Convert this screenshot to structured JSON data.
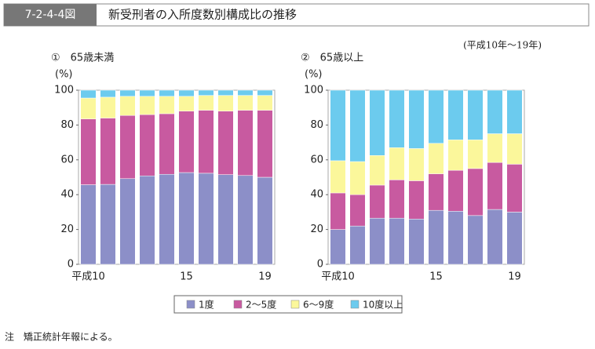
{
  "figure_id": "7-2-4-4図",
  "title": "新受刑者の入所度数別構成比の推移",
  "period": "(平成10年～19年)",
  "note": "注　矯正統計年報による。",
  "chart_data": [
    {
      "type": "stacked_bar",
      "subtitle": "①　65歳未満",
      "y_label": "(%)",
      "categories": [
        "平成10",
        null,
        null,
        null,
        null,
        "15",
        null,
        null,
        null,
        "19"
      ],
      "ylim": [
        0,
        100
      ],
      "yticks": [
        0,
        20,
        40,
        60,
        80,
        100
      ],
      "series": [
        {
          "name": "1度",
          "color": "#8c8fc8",
          "values": [
            45.7,
            45.9,
            49.2,
            50.8,
            51.7,
            52.7,
            52.3,
            51.5,
            51.0,
            50.0
          ]
        },
        {
          "name": "2～5度",
          "color": "#c85aa0",
          "values": [
            37.8,
            38.1,
            36.3,
            35.2,
            34.8,
            35.3,
            36.2,
            36.5,
            37.5,
            38.5
          ]
        },
        {
          "name": "6～9度",
          "color": "#fbf79b",
          "values": [
            12.0,
            12.0,
            11.0,
            10.5,
            10.0,
            8.5,
            8.5,
            9.0,
            8.5,
            8.5
          ]
        },
        {
          "name": "10度以上",
          "color": "#6ccbee",
          "values": [
            4.5,
            4.0,
            3.5,
            3.5,
            3.5,
            3.5,
            3.0,
            3.0,
            3.0,
            3.0
          ]
        }
      ]
    },
    {
      "type": "stacked_bar",
      "subtitle": "②　65歳以上",
      "y_label": "(%)",
      "categories": [
        "平成10",
        null,
        null,
        null,
        null,
        "15",
        null,
        null,
        null,
        "19"
      ],
      "ylim": [
        0,
        100
      ],
      "yticks": [
        0,
        20,
        40,
        60,
        80,
        100
      ],
      "series": [
        {
          "color": "#8c8fc8",
          "values": [
            20.0,
            22.0,
            26.5,
            26.5,
            26.0,
            31.0,
            30.5,
            28.0,
            31.5,
            30.0
          ]
        },
        {
          "color": "#c85aa0",
          "values": [
            21.0,
            18.0,
            19.0,
            22.0,
            22.0,
            21.0,
            23.5,
            27.0,
            27.0,
            27.5
          ]
        },
        {
          "color": "#fbf79b",
          "values": [
            18.5,
            19.0,
            17.0,
            18.5,
            18.5,
            17.5,
            17.5,
            16.5,
            16.5,
            17.5
          ]
        },
        {
          "color": "#6ccbee",
          "values": [
            40.5,
            41.0,
            37.5,
            33.0,
            33.5,
            30.5,
            28.5,
            28.5,
            25.0,
            25.0
          ]
        }
      ]
    }
  ]
}
